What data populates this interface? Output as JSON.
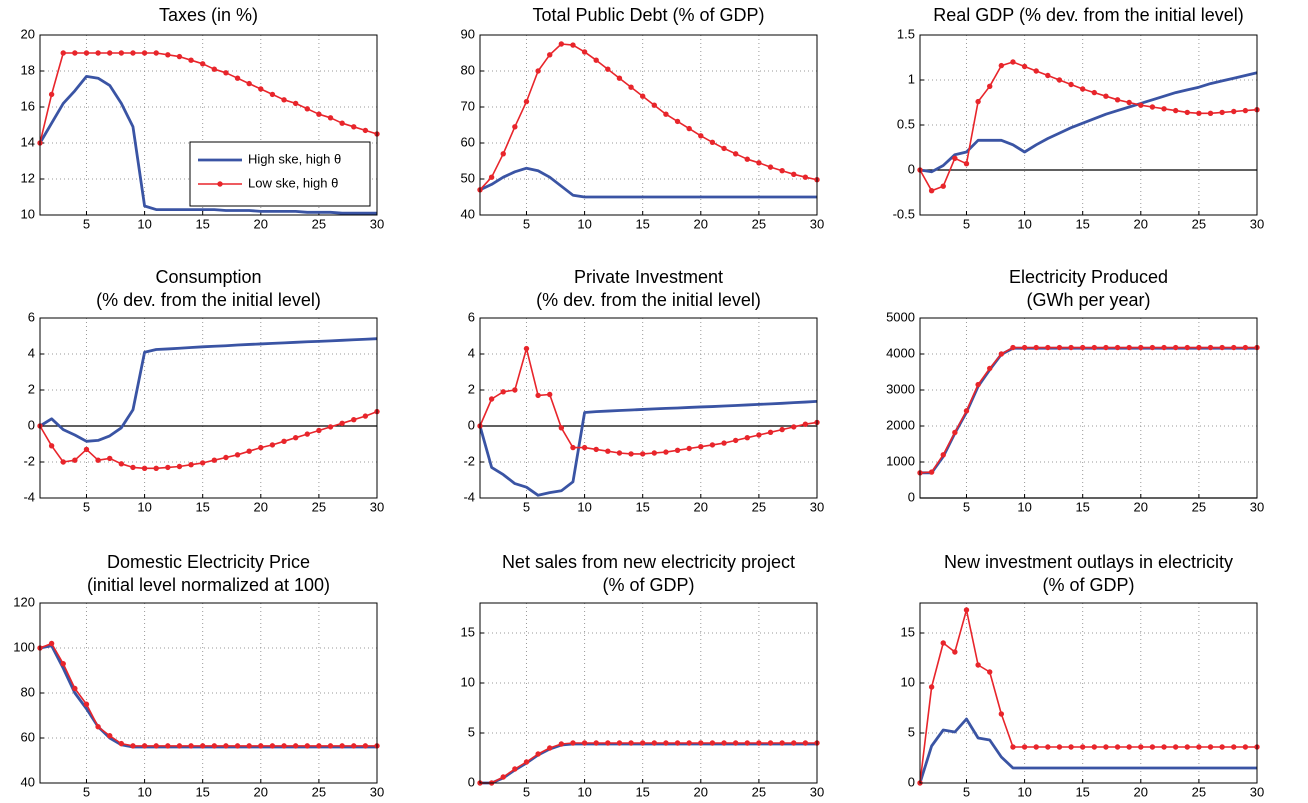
{
  "chart_data": [
    {
      "type": "line",
      "title": "Taxes (in %)",
      "x": [
        1,
        2,
        3,
        4,
        5,
        6,
        7,
        8,
        9,
        10,
        11,
        12,
        13,
        14,
        15,
        16,
        17,
        18,
        19,
        20,
        21,
        22,
        23,
        24,
        25,
        26,
        27,
        28,
        29,
        30
      ],
      "xlim": [
        1,
        30
      ],
      "xticks": [
        5,
        10,
        15,
        20,
        25,
        30
      ],
      "ylim": [
        10,
        20
      ],
      "yticks": [
        10,
        12,
        14,
        16,
        18,
        20
      ],
      "grid": true,
      "legend": "lower right",
      "series": [
        {
          "name": "High ske, high θ",
          "color": "#3a54a4",
          "values": [
            14,
            15.1,
            16.2,
            16.9,
            17.7,
            17.6,
            17.2,
            16.2,
            14.9,
            10.5,
            10.3,
            10.3,
            10.3,
            10.3,
            10.3,
            10.3,
            10.25,
            10.25,
            10.25,
            10.2,
            10.2,
            10.2,
            10.2,
            10.15,
            10.15,
            10.15,
            10.1,
            10.1,
            10.1,
            10.1
          ]
        },
        {
          "name": "Low ske, high θ",
          "color": "#e8252b",
          "marker": "circle",
          "values": [
            14,
            16.7,
            19,
            19,
            19,
            19,
            19,
            19,
            19,
            19,
            19,
            18.9,
            18.8,
            18.6,
            18.4,
            18.1,
            17.9,
            17.6,
            17.3,
            17.0,
            16.7,
            16.4,
            16.2,
            15.9,
            15.6,
            15.4,
            15.1,
            14.9,
            14.7,
            14.5
          ]
        }
      ]
    },
    {
      "type": "line",
      "title": "Total Public Debt (% of GDP)",
      "x": [
        1,
        2,
        3,
        4,
        5,
        6,
        7,
        8,
        9,
        10,
        11,
        12,
        13,
        14,
        15,
        16,
        17,
        18,
        19,
        20,
        21,
        22,
        23,
        24,
        25,
        26,
        27,
        28,
        29,
        30
      ],
      "xlim": [
        1,
        30
      ],
      "xticks": [
        5,
        10,
        15,
        20,
        25,
        30
      ],
      "ylim": [
        40,
        90
      ],
      "yticks": [
        40,
        50,
        60,
        70,
        80,
        90
      ],
      "grid": true,
      "series": [
        {
          "color": "#3a54a4",
          "values": [
            47,
            48.5,
            50.5,
            52,
            53,
            52.3,
            50.5,
            48,
            45.5,
            45,
            45,
            45,
            45,
            45,
            45,
            45,
            45,
            45,
            45,
            45,
            45,
            45,
            45,
            45,
            45,
            45,
            45,
            45,
            45,
            45
          ]
        },
        {
          "color": "#e8252b",
          "marker": "circle",
          "values": [
            47,
            50.5,
            57,
            64.5,
            71.5,
            80,
            84.5,
            87.5,
            87.2,
            85.3,
            83,
            80.5,
            78,
            75.5,
            73,
            70.5,
            68,
            66,
            64,
            62,
            60.2,
            58.5,
            57,
            55.5,
            54.5,
            53.3,
            52.3,
            51.3,
            50.5,
            49.8
          ]
        }
      ]
    },
    {
      "type": "line",
      "title": "Real GDP (% dev. from the initial level)",
      "x": [
        1,
        2,
        3,
        4,
        5,
        6,
        7,
        8,
        9,
        10,
        11,
        12,
        13,
        14,
        15,
        16,
        17,
        18,
        19,
        20,
        21,
        22,
        23,
        24,
        25,
        26,
        27,
        28,
        29,
        30
      ],
      "xlim": [
        1,
        30
      ],
      "xticks": [
        5,
        10,
        15,
        20,
        25,
        30
      ],
      "ylim": [
        -0.5,
        1.5
      ],
      "yticks": [
        -0.5,
        0,
        0.5,
        1,
        1.5
      ],
      "grid": true,
      "zero_line": true,
      "series": [
        {
          "color": "#3a54a4",
          "values": [
            0,
            -0.02,
            0.05,
            0.17,
            0.2,
            0.33,
            0.33,
            0.33,
            0.28,
            0.2,
            0.28,
            0.35,
            0.41,
            0.47,
            0.52,
            0.57,
            0.62,
            0.66,
            0.7,
            0.74,
            0.78,
            0.82,
            0.86,
            0.89,
            0.92,
            0.96,
            0.99,
            1.02,
            1.05,
            1.08
          ]
        },
        {
          "color": "#e8252b",
          "marker": "circle",
          "values": [
            0,
            -0.23,
            -0.18,
            0.13,
            0.07,
            0.76,
            0.93,
            1.16,
            1.2,
            1.15,
            1.1,
            1.05,
            1.0,
            0.95,
            0.9,
            0.86,
            0.82,
            0.78,
            0.75,
            0.72,
            0.7,
            0.68,
            0.66,
            0.64,
            0.63,
            0.63,
            0.64,
            0.65,
            0.66,
            0.67
          ]
        }
      ]
    },
    {
      "type": "line",
      "title": "Consumption",
      "subtitle": "(% dev. from the initial level)",
      "x": [
        1,
        2,
        3,
        4,
        5,
        6,
        7,
        8,
        9,
        10,
        11,
        12,
        13,
        14,
        15,
        16,
        17,
        18,
        19,
        20,
        21,
        22,
        23,
        24,
        25,
        26,
        27,
        28,
        29,
        30
      ],
      "xlim": [
        1,
        30
      ],
      "xticks": [
        5,
        10,
        15,
        20,
        25,
        30
      ],
      "ylim": [
        -4,
        6
      ],
      "yticks": [
        -4,
        -2,
        0,
        2,
        4,
        6
      ],
      "grid": true,
      "zero_line": true,
      "series": [
        {
          "color": "#3a54a4",
          "values": [
            0,
            0.4,
            -0.2,
            -0.5,
            -0.85,
            -0.8,
            -0.55,
            -0.1,
            0.9,
            4.1,
            4.25,
            4.28,
            4.32,
            4.36,
            4.4,
            4.43,
            4.46,
            4.5,
            4.53,
            4.56,
            4.59,
            4.62,
            4.65,
            4.68,
            4.7,
            4.73,
            4.76,
            4.79,
            4.82,
            4.85
          ]
        },
        {
          "color": "#e8252b",
          "marker": "circle",
          "values": [
            0,
            -1.1,
            -2,
            -1.9,
            -1.3,
            -1.9,
            -1.8,
            -2.1,
            -2.3,
            -2.35,
            -2.35,
            -2.3,
            -2.25,
            -2.15,
            -2.05,
            -1.9,
            -1.75,
            -1.6,
            -1.4,
            -1.2,
            -1.05,
            -0.85,
            -0.65,
            -0.45,
            -0.25,
            -0.05,
            0.15,
            0.35,
            0.55,
            0.8
          ]
        }
      ]
    },
    {
      "type": "line",
      "title": "Private Investment",
      "subtitle": "(% dev. from the initial level)",
      "x": [
        1,
        2,
        3,
        4,
        5,
        6,
        7,
        8,
        9,
        10,
        11,
        12,
        13,
        14,
        15,
        16,
        17,
        18,
        19,
        20,
        21,
        22,
        23,
        24,
        25,
        26,
        27,
        28,
        29,
        30
      ],
      "xlim": [
        1,
        30
      ],
      "xticks": [
        5,
        10,
        15,
        20,
        25,
        30
      ],
      "ylim": [
        -4,
        6
      ],
      "yticks": [
        -4,
        -2,
        0,
        2,
        4,
        6
      ],
      "grid": true,
      "zero_line": true,
      "series": [
        {
          "color": "#3a54a4",
          "values": [
            0,
            -2.3,
            -2.7,
            -3.2,
            -3.4,
            -3.85,
            -3.7,
            -3.6,
            -3.1,
            0.75,
            0.8,
            0.83,
            0.86,
            0.89,
            0.92,
            0.95,
            0.98,
            1.0,
            1.03,
            1.06,
            1.08,
            1.11,
            1.14,
            1.17,
            1.2,
            1.23,
            1.26,
            1.3,
            1.33,
            1.37
          ]
        },
        {
          "color": "#e8252b",
          "marker": "circle",
          "values": [
            0,
            1.5,
            1.9,
            2.0,
            4.3,
            1.7,
            1.75,
            -0.1,
            -1.2,
            -1.2,
            -1.3,
            -1.4,
            -1.5,
            -1.55,
            -1.55,
            -1.5,
            -1.45,
            -1.35,
            -1.25,
            -1.15,
            -1.05,
            -0.95,
            -0.8,
            -0.65,
            -0.5,
            -0.35,
            -0.2,
            -0.05,
            0.1,
            0.2
          ]
        }
      ]
    },
    {
      "type": "line",
      "title": "Electricity Produced",
      "subtitle": "(GWh per year)",
      "x": [
        1,
        2,
        3,
        4,
        5,
        6,
        7,
        8,
        9,
        10,
        11,
        12,
        13,
        14,
        15,
        16,
        17,
        18,
        19,
        20,
        21,
        22,
        23,
        24,
        25,
        26,
        27,
        28,
        29,
        30
      ],
      "xlim": [
        1,
        30
      ],
      "xticks": [
        5,
        10,
        15,
        20,
        25,
        30
      ],
      "ylim": [
        0,
        5000
      ],
      "yticks": [
        0,
        1000,
        2000,
        3000,
        4000,
        5000
      ],
      "grid": true,
      "zero_line": true,
      "series": [
        {
          "color": "#3a54a4",
          "values": [
            700,
            700,
            1150,
            1800,
            2380,
            3100,
            3560,
            3990,
            4160,
            4160,
            4160,
            4160,
            4160,
            4160,
            4160,
            4160,
            4160,
            4160,
            4160,
            4160,
            4160,
            4160,
            4160,
            4160,
            4160,
            4160,
            4160,
            4160,
            4160,
            4160
          ]
        },
        {
          "color": "#e8252b",
          "marker": "circle",
          "values": [
            700,
            720,
            1200,
            1820,
            2420,
            3150,
            3600,
            4000,
            4180,
            4180,
            4180,
            4180,
            4180,
            4180,
            4180,
            4180,
            4180,
            4180,
            4180,
            4180,
            4180,
            4180,
            4180,
            4180,
            4180,
            4180,
            4180,
            4180,
            4180,
            4180
          ]
        }
      ]
    },
    {
      "type": "line",
      "title": "Domestic Electricity Price",
      "subtitle": "(initial level normalized at 100)",
      "x": [
        1,
        2,
        3,
        4,
        5,
        6,
        7,
        8,
        9,
        10,
        11,
        12,
        13,
        14,
        15,
        16,
        17,
        18,
        19,
        20,
        21,
        22,
        23,
        24,
        25,
        26,
        27,
        28,
        29,
        30
      ],
      "xlim": [
        1,
        30
      ],
      "xticks": [
        5,
        10,
        15,
        20,
        25,
        30
      ],
      "ylim": [
        40,
        120
      ],
      "yticks": [
        40,
        60,
        80,
        100,
        120
      ],
      "grid": true,
      "series": [
        {
          "color": "#3a54a4",
          "values": [
            100,
            101,
            91,
            80,
            73,
            65,
            60,
            57,
            56,
            56,
            56,
            56,
            56,
            56,
            56,
            56,
            56,
            56,
            56,
            56,
            56,
            56,
            56,
            56,
            56,
            56,
            56,
            56,
            56,
            56
          ]
        },
        {
          "color": "#e8252b",
          "marker": "circle",
          "values": [
            100,
            102,
            93,
            82,
            75,
            65,
            61,
            57.5,
            56.5,
            56.5,
            56.5,
            56.5,
            56.5,
            56.5,
            56.5,
            56.5,
            56.5,
            56.5,
            56.5,
            56.5,
            56.5,
            56.5,
            56.5,
            56.5,
            56.5,
            56.5,
            56.5,
            56.5,
            56.5,
            56.5
          ]
        }
      ]
    },
    {
      "type": "line",
      "title": "Net sales from new electricity project",
      "subtitle": "(% of GDP)",
      "x": [
        1,
        2,
        3,
        4,
        5,
        6,
        7,
        8,
        9,
        10,
        11,
        12,
        13,
        14,
        15,
        16,
        17,
        18,
        19,
        20,
        21,
        22,
        23,
        24,
        25,
        26,
        27,
        28,
        29,
        30
      ],
      "xlim": [
        1,
        30
      ],
      "xticks": [
        5,
        10,
        15,
        20,
        25,
        30
      ],
      "ylim": [
        0,
        18
      ],
      "yticks": [
        0,
        5,
        10,
        15
      ],
      "grid": true,
      "series": [
        {
          "color": "#3a54a4",
          "values": [
            0,
            0,
            0.5,
            1.3,
            2.0,
            2.8,
            3.4,
            3.8,
            3.9,
            3.9,
            3.9,
            3.9,
            3.9,
            3.9,
            3.9,
            3.9,
            3.9,
            3.9,
            3.9,
            3.9,
            3.9,
            3.9,
            3.9,
            3.9,
            3.9,
            3.9,
            3.9,
            3.9,
            3.9,
            3.9
          ]
        },
        {
          "color": "#e8252b",
          "marker": "circle",
          "values": [
            0,
            0,
            0.6,
            1.4,
            2.1,
            2.9,
            3.5,
            3.9,
            4.0,
            4.0,
            4.0,
            4.0,
            4.0,
            4.0,
            4.0,
            4.0,
            4.0,
            4.0,
            4.0,
            4.0,
            4.0,
            4.0,
            4.0,
            4.0,
            4.0,
            4.0,
            4.0,
            4.0,
            4.0,
            4.0
          ]
        }
      ]
    },
    {
      "type": "line",
      "title": "New investment outlays in electricity",
      "subtitle": "(% of GDP)",
      "x": [
        1,
        2,
        3,
        4,
        5,
        6,
        7,
        8,
        9,
        10,
        11,
        12,
        13,
        14,
        15,
        16,
        17,
        18,
        19,
        20,
        21,
        22,
        23,
        24,
        25,
        26,
        27,
        28,
        29,
        30
      ],
      "xlim": [
        1,
        30
      ],
      "xticks": [
        5,
        10,
        15,
        20,
        25,
        30
      ],
      "ylim": [
        0,
        18
      ],
      "yticks": [
        0,
        5,
        10,
        15
      ],
      "grid": true,
      "series": [
        {
          "color": "#3a54a4",
          "values": [
            0,
            3.7,
            5.3,
            5.1,
            6.4,
            4.5,
            4.3,
            2.6,
            1.5,
            1.5,
            1.5,
            1.5,
            1.5,
            1.5,
            1.5,
            1.5,
            1.5,
            1.5,
            1.5,
            1.5,
            1.5,
            1.5,
            1.5,
            1.5,
            1.5,
            1.5,
            1.5,
            1.5,
            1.5,
            1.5
          ]
        },
        {
          "color": "#e8252b",
          "marker": "circle",
          "values": [
            0,
            9.6,
            14,
            13.1,
            17.3,
            11.8,
            11.1,
            6.9,
            3.6,
            3.6,
            3.6,
            3.6,
            3.6,
            3.6,
            3.6,
            3.6,
            3.6,
            3.6,
            3.6,
            3.6,
            3.6,
            3.6,
            3.6,
            3.6,
            3.6,
            3.6,
            3.6,
            3.6,
            3.6,
            3.6
          ]
        }
      ]
    }
  ]
}
